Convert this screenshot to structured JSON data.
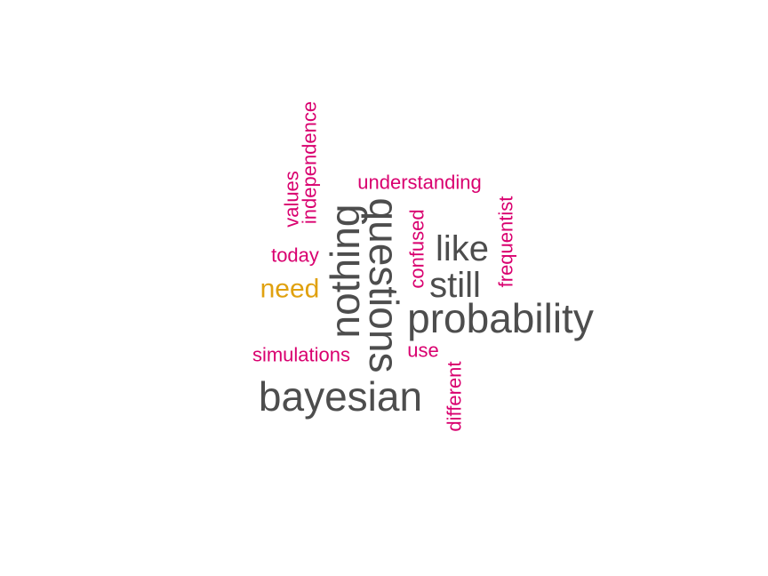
{
  "colors": {
    "background": "#ffffff",
    "high": "#4d4d4d",
    "mid": "#e0a10f",
    "low": "#d9006f"
  },
  "chart_data": {
    "type": "wordcloud",
    "title": "",
    "words": [
      {
        "text": "bayesian",
        "weight": 5,
        "color": "high",
        "rotation": 0
      },
      {
        "text": "probability",
        "weight": 5,
        "color": "high",
        "rotation": 0
      },
      {
        "text": "questions",
        "weight": 5,
        "color": "high",
        "rotation": 90
      },
      {
        "text": "nothing",
        "weight": 5,
        "color": "high",
        "rotation": -90
      },
      {
        "text": "like",
        "weight": 4,
        "color": "high",
        "rotation": 0
      },
      {
        "text": "still",
        "weight": 4,
        "color": "high",
        "rotation": 0
      },
      {
        "text": "need",
        "weight": 3,
        "color": "mid",
        "rotation": 0
      },
      {
        "text": "understanding",
        "weight": 2,
        "color": "low",
        "rotation": 0
      },
      {
        "text": "independence",
        "weight": 2,
        "color": "low",
        "rotation": -90
      },
      {
        "text": "values",
        "weight": 2,
        "color": "low",
        "rotation": -90
      },
      {
        "text": "today",
        "weight": 2,
        "color": "low",
        "rotation": 0
      },
      {
        "text": "confused",
        "weight": 2,
        "color": "low",
        "rotation": -90
      },
      {
        "text": "frequentist",
        "weight": 2,
        "color": "low",
        "rotation": -90
      },
      {
        "text": "simulations",
        "weight": 2,
        "color": "low",
        "rotation": 0
      },
      {
        "text": "use",
        "weight": 2,
        "color": "low",
        "rotation": 0
      },
      {
        "text": "different",
        "weight": 2,
        "color": "low",
        "rotation": -90
      }
    ]
  }
}
